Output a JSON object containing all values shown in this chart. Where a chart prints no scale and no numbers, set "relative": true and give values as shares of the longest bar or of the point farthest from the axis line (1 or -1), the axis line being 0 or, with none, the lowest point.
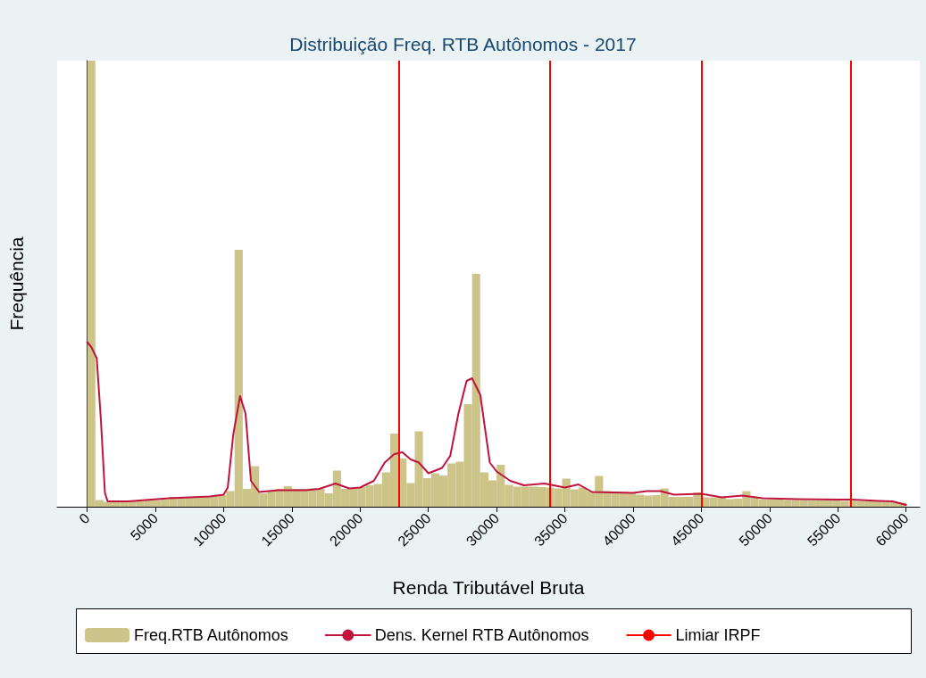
{
  "chart_data": {
    "type": "histogram",
    "title": "Distribuição Freq. RTB Autônomos - 2017",
    "xlabel": "Renda Tributável Bruta",
    "ylabel": "Frequência",
    "relative": true,
    "grid": false,
    "legend": "bottom",
    "xlim": [
      -2200,
      61000
    ],
    "xticks": [
      0,
      5000,
      10000,
      15000,
      20000,
      25000,
      30000,
      35000,
      40000,
      45000,
      50000,
      55000,
      60000
    ],
    "series": [
      {
        "name": "Freq.RTB Autônomos",
        "color": "#cdc48a",
        "bins": [
          0,
          600,
          1200,
          1800,
          2400,
          3000,
          3600,
          4200,
          4800,
          5400,
          6000,
          6600,
          7200,
          7800,
          8400,
          9000,
          9600,
          10200,
          10800,
          11400,
          12000,
          12600,
          13200,
          13800,
          14400,
          15000,
          15600,
          16200,
          16800,
          17400,
          18000,
          18600,
          19200,
          19800,
          20400,
          21000,
          21600,
          22200,
          22800,
          23400,
          24000,
          24600,
          25200,
          25800,
          26400,
          27000,
          27600,
          28200,
          28800,
          29400,
          30000,
          30600,
          31200,
          31800,
          32400,
          33000,
          33600,
          34200,
          34800,
          35400,
          36000,
          36600,
          37200,
          37800,
          38400,
          39000,
          39600,
          40200,
          40800,
          41400,
          42000,
          42600,
          43200,
          43800,
          44400,
          45000,
          45600,
          46200,
          46800,
          47400,
          48000,
          48600,
          49200,
          49800,
          50400,
          51000,
          51600,
          52200,
          52800,
          53400,
          54000,
          54600,
          55200,
          55800,
          56400,
          57000,
          57600,
          58200,
          58800,
          59400,
          60000
        ],
        "values": [
          1.0,
          0.015,
          0.011,
          0.011,
          0.012,
          0.012,
          0.013,
          0.014,
          0.015,
          0.016,
          0.022,
          0.02,
          0.021,
          0.022,
          0.023,
          0.024,
          0.026,
          0.035,
          0.576,
          0.04,
          0.091,
          0.03,
          0.035,
          0.04,
          0.046,
          0.04,
          0.04,
          0.041,
          0.04,
          0.03,
          0.081,
          0.04,
          0.042,
          0.044,
          0.048,
          0.051,
          0.077,
          0.164,
          0.108,
          0.053,
          0.169,
          0.064,
          0.075,
          0.07,
          0.097,
          0.101,
          0.23,
          0.522,
          0.077,
          0.059,
          0.094,
          0.049,
          0.045,
          0.045,
          0.045,
          0.044,
          0.043,
          0.041,
          0.063,
          0.039,
          0.043,
          0.035,
          0.069,
          0.035,
          0.034,
          0.033,
          0.032,
          0.027,
          0.025,
          0.026,
          0.041,
          0.022,
          0.022,
          0.022,
          0.032,
          0.021,
          0.021,
          0.021,
          0.017,
          0.018,
          0.035,
          0.021,
          0.016,
          0.016,
          0.016,
          0.015,
          0.015,
          0.015,
          0.014,
          0.014,
          0.015,
          0.015,
          0.013,
          0.013,
          0.012,
          0.012,
          0.012,
          0.011,
          0.011,
          0.009
        ]
      },
      {
        "type": "line",
        "name": "Dens. Kernel RTB Autônomos",
        "color": "#c0143c",
        "marker": "none",
        "line_style": "solid",
        "x": [
          0,
          300,
          700,
          1000,
          1300,
          1500,
          3000,
          6000,
          9000,
          10000,
          10300,
          10700,
          11200,
          11600,
          12000,
          12600,
          14000,
          16000,
          17000,
          18200,
          19200,
          20000,
          21000,
          21800,
          22500,
          23100,
          23700,
          24300,
          25000,
          26000,
          26600,
          27200,
          27800,
          28200,
          28800,
          29500,
          30000,
          31000,
          32000,
          33500,
          35000,
          36000,
          37000,
          40000,
          41000,
          42000,
          43000,
          45000,
          46500,
          48000,
          49500,
          52000,
          55000,
          56000,
          58000,
          59000,
          60000
        ],
        "values": [
          0.369,
          0.358,
          0.333,
          0.197,
          0.031,
          0.012,
          0.012,
          0.019,
          0.023,
          0.027,
          0.043,
          0.161,
          0.248,
          0.209,
          0.058,
          0.033,
          0.037,
          0.037,
          0.04,
          0.052,
          0.041,
          0.043,
          0.058,
          0.099,
          0.118,
          0.122,
          0.106,
          0.099,
          0.075,
          0.087,
          0.114,
          0.209,
          0.282,
          0.288,
          0.251,
          0.099,
          0.079,
          0.058,
          0.048,
          0.052,
          0.043,
          0.05,
          0.033,
          0.031,
          0.035,
          0.035,
          0.027,
          0.029,
          0.021,
          0.025,
          0.019,
          0.017,
          0.016,
          0.016,
          0.013,
          0.012,
          0.004
        ]
      }
    ],
    "ref_lines": [
      {
        "axis": "x",
        "value": 22848,
        "label": "Limiar IRPF",
        "color": "#ff0000"
      },
      {
        "axis": "x",
        "value": 33920,
        "label": null,
        "color": "#ff0000"
      },
      {
        "axis": "x",
        "value": 45013,
        "label": null,
        "color": "#ff0000"
      },
      {
        "axis": "x",
        "value": 55976,
        "label": null,
        "color": "#ff0000"
      }
    ]
  }
}
